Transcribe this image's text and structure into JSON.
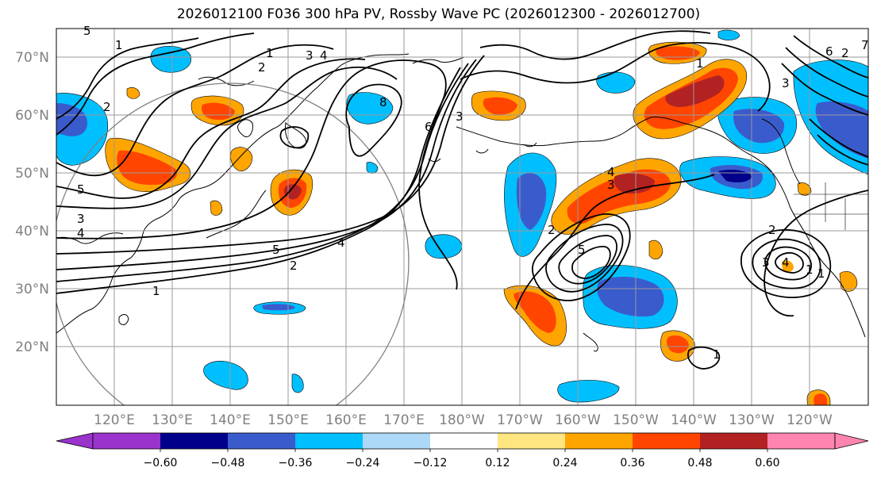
{
  "title": "2026012100 F036 300 hPa PV, Rossby Wave PC (2026012300 - 2026012700)",
  "map": {
    "projection": "PlateCarree",
    "lon_range": [
      110,
      250
    ],
    "lat_range": [
      10,
      75
    ],
    "lat_labels": [
      "70°N",
      "60°N",
      "50°N",
      "40°N",
      "30°N",
      "20°N"
    ],
    "lon_labels": [
      "120°E",
      "130°E",
      "140°E",
      "150°E",
      "160°E",
      "170°E",
      "180°W",
      "170°W",
      "160°W",
      "150°W",
      "140°W",
      "130°W",
      "120°W"
    ],
    "contour_labels": [
      "5",
      "3",
      "4",
      "1",
      "2",
      "5",
      "4",
      "2",
      "1",
      "2",
      "3",
      "4",
      "1",
      "6",
      "5",
      "8",
      "3",
      "2",
      "4",
      "3",
      "5",
      "1",
      "1",
      "2",
      "3",
      "4",
      "1",
      "6",
      "2",
      "3",
      "7",
      "1"
    ]
  },
  "colorbar": {
    "ticks": [
      "−0.60",
      "−0.48",
      "−0.36",
      "−0.24",
      "−0.12",
      "0.12",
      "0.24",
      "0.36",
      "0.48",
      "0.60"
    ],
    "colors": [
      "#9933cc",
      "#00008b",
      "#3a5bcc",
      "#00bfff",
      "#add8f7",
      "#ffffff",
      "#ffe680",
      "#ffa500",
      "#ff4500",
      "#b22222",
      "#ff85b0"
    ]
  },
  "colors": {
    "grid": "#9a9a9a",
    "coast": "#000000",
    "contour": "#000000"
  }
}
